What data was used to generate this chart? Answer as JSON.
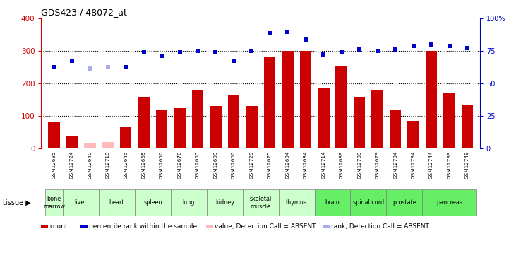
{
  "title": "GDS423 / 48072_at",
  "samples": [
    "GSM12635",
    "GSM12724",
    "GSM12640",
    "GSM12719",
    "GSM12645",
    "GSM12665",
    "GSM12650",
    "GSM12670",
    "GSM12655",
    "GSM12699",
    "GSM12660",
    "GSM12729",
    "GSM12675",
    "GSM12694",
    "GSM12684",
    "GSM12714",
    "GSM12689",
    "GSM12709",
    "GSM12679",
    "GSM12704",
    "GSM12734",
    "GSM12744",
    "GSM12739",
    "GSM12749"
  ],
  "count_values": [
    80,
    40,
    15,
    20,
    65,
    160,
    120,
    125,
    180,
    130,
    165,
    130,
    280,
    300,
    300,
    185,
    255,
    160,
    180,
    120,
    85,
    300,
    170,
    135
  ],
  "count_absent": [
    false,
    false,
    true,
    true,
    false,
    false,
    false,
    false,
    false,
    false,
    false,
    false,
    false,
    false,
    false,
    false,
    false,
    false,
    false,
    false,
    false,
    false,
    false,
    false
  ],
  "rank_values": [
    250,
    270,
    245,
    250,
    250,
    295,
    285,
    295,
    300,
    295,
    270,
    300,
    355,
    360,
    335,
    290,
    295,
    305,
    300,
    305,
    315,
    320,
    315,
    310
  ],
  "rank_absent": [
    false,
    false,
    true,
    true,
    false,
    false,
    false,
    false,
    false,
    false,
    false,
    false,
    false,
    false,
    false,
    false,
    false,
    false,
    false,
    false,
    false,
    false,
    false,
    false
  ],
  "tissues": [
    {
      "name": "bone\nmarrow",
      "start": 0,
      "end": 0,
      "color": "#ccffcc"
    },
    {
      "name": "liver",
      "start": 1,
      "end": 2,
      "color": "#ccffcc"
    },
    {
      "name": "heart",
      "start": 3,
      "end": 4,
      "color": "#ccffcc"
    },
    {
      "name": "spleen",
      "start": 5,
      "end": 6,
      "color": "#ccffcc"
    },
    {
      "name": "lung",
      "start": 7,
      "end": 8,
      "color": "#ccffcc"
    },
    {
      "name": "kidney",
      "start": 9,
      "end": 10,
      "color": "#ccffcc"
    },
    {
      "name": "skeletal\nmuscle",
      "start": 11,
      "end": 12,
      "color": "#ccffcc"
    },
    {
      "name": "thymus",
      "start": 13,
      "end": 14,
      "color": "#ccffcc"
    },
    {
      "name": "brain",
      "start": 15,
      "end": 16,
      "color": "#66ee66"
    },
    {
      "name": "spinal cord",
      "start": 17,
      "end": 18,
      "color": "#66ee66"
    },
    {
      "name": "prostate",
      "start": 19,
      "end": 20,
      "color": "#66ee66"
    },
    {
      "name": "pancreas",
      "start": 21,
      "end": 23,
      "color": "#66ee66"
    }
  ],
  "ylim_left": [
    0,
    400
  ],
  "yticks_left": [
    0,
    100,
    200,
    300,
    400
  ],
  "yticks_right": [
    0,
    25,
    50,
    75,
    100
  ],
  "bar_color_normal": "#cc0000",
  "bar_color_absent": "#ffbbbb",
  "rank_color_normal": "#0000cc",
  "rank_color_absent": "#aaaaee",
  "gridline_values": [
    100,
    200,
    300
  ],
  "legend_items": [
    {
      "color": "#cc0000",
      "label": "count"
    },
    {
      "color": "#0000cc",
      "label": "percentile rank within the sample"
    },
    {
      "color": "#ffbbbb",
      "label": "value, Detection Call = ABSENT"
    },
    {
      "color": "#aaaaee",
      "label": "rank, Detection Call = ABSENT"
    }
  ],
  "bg_color": "#d8d8d8",
  "tissue_light_green": "#ccffcc",
  "tissue_dark_green": "#66ee66"
}
